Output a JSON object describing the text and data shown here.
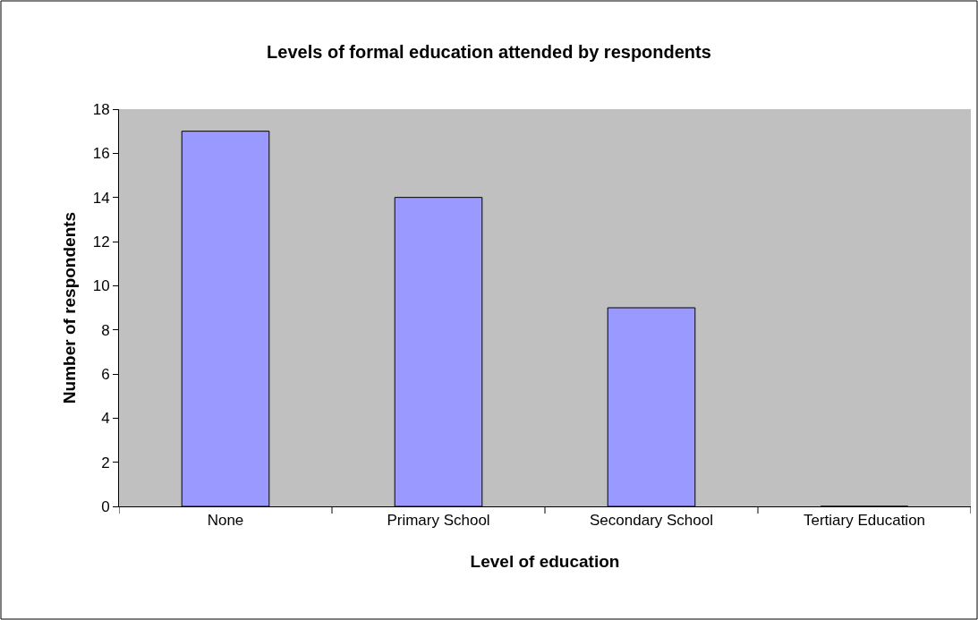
{
  "chart_data": {
    "type": "bar",
    "title": "Levels of formal education attended by respondents",
    "xlabel": "Level of education",
    "ylabel": "Number of respondents",
    "categories": [
      "None",
      "Primary School",
      "Secondary School",
      "Tertiary Education"
    ],
    "values": [
      17,
      14,
      9,
      0
    ],
    "color": "#9999ff",
    "ylim": [
      0,
      18
    ],
    "yticks": [
      0,
      2,
      4,
      6,
      8,
      10,
      12,
      14,
      16,
      18
    ]
  }
}
